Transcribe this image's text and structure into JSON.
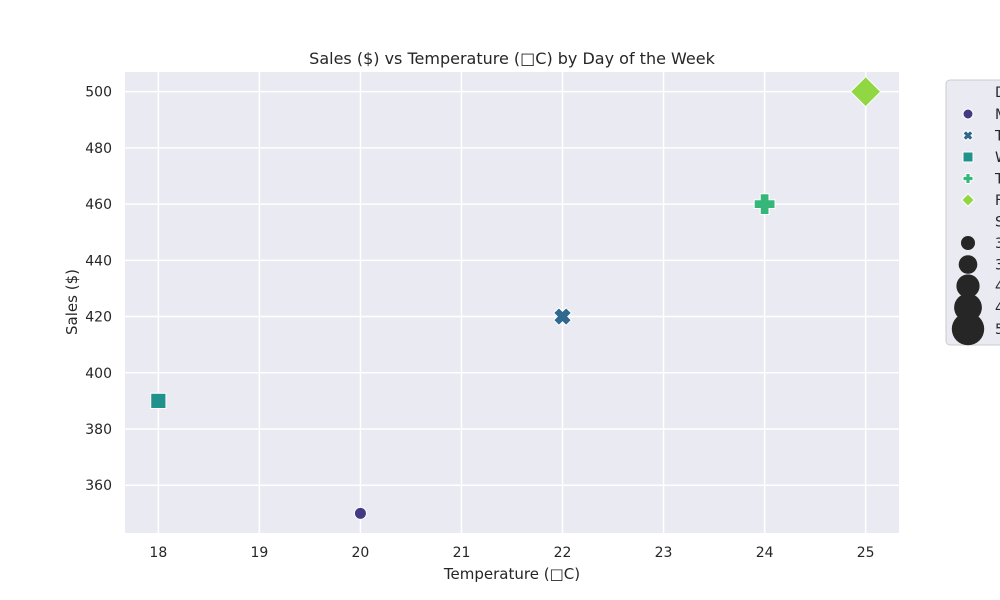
{
  "chart_data": {
    "type": "scatter",
    "title": "Sales ($) vs Temperature (□C) by Day of the Week",
    "xlabel": "Temperature (□C)",
    "ylabel": "Sales ($)",
    "xlim": [
      17.67,
      25.33
    ],
    "ylim": [
      343,
      507
    ],
    "xticks": [
      18,
      19,
      20,
      21,
      22,
      23,
      24,
      25
    ],
    "yticks": [
      360,
      380,
      400,
      420,
      440,
      460,
      480,
      500
    ],
    "grid": true,
    "legend_position": "outside-top-right",
    "points": [
      {
        "x": 20,
        "y": 350,
        "marker": "circle",
        "color": "#443983"
      },
      {
        "x": 22,
        "y": 420,
        "marker": "x",
        "color": "#31688e"
      },
      {
        "x": 18,
        "y": 390,
        "marker": "square",
        "color": "#21918c"
      },
      {
        "x": 24,
        "y": 460,
        "marker": "plus",
        "color": "#35b779"
      },
      {
        "x": 25,
        "y": 500,
        "marker": "diamond",
        "color": "#90d743"
      }
    ],
    "legend": {
      "hue_title": "D",
      "hue_entries": [
        {
          "label": "M",
          "marker": "circle",
          "color": "#443983"
        },
        {
          "label": "T",
          "marker": "x",
          "color": "#31688e"
        },
        {
          "label": "W",
          "marker": "square",
          "color": "#21918c"
        },
        {
          "label": "T",
          "marker": "plus",
          "color": "#35b779"
        },
        {
          "label": "F",
          "marker": "diamond",
          "color": "#90d743"
        }
      ],
      "size_title": "S",
      "size_entries": [
        {
          "label": "3",
          "rank": 1
        },
        {
          "label": "3",
          "rank": 2
        },
        {
          "label": "4",
          "rank": 3
        },
        {
          "label": "4",
          "rank": 4
        },
        {
          "label": "5",
          "rank": 5
        }
      ]
    }
  }
}
